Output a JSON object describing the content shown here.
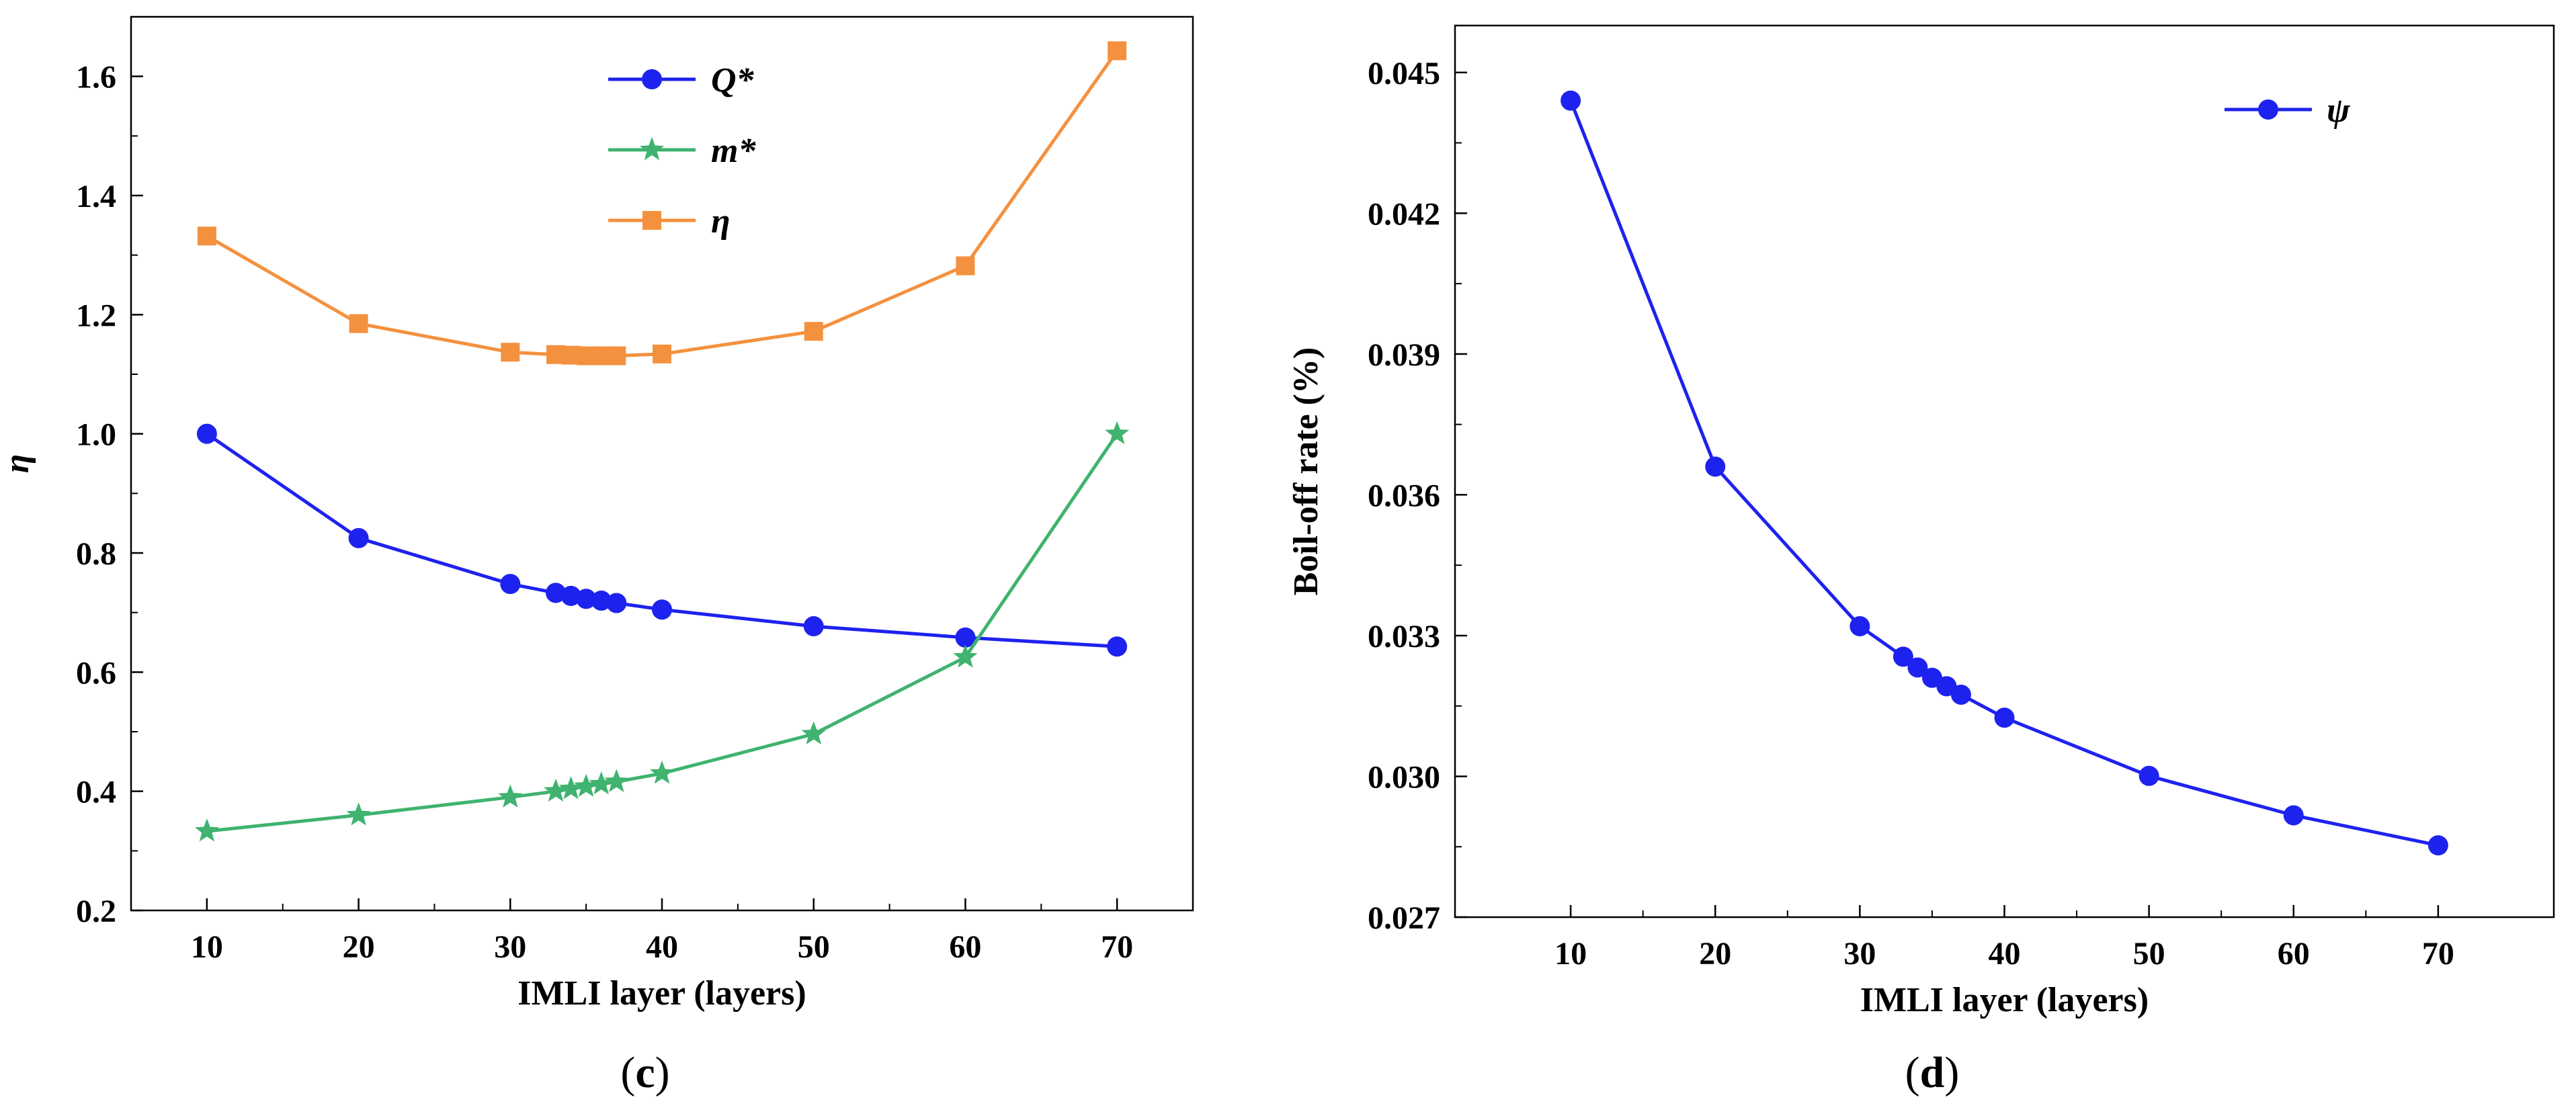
{
  "chart_data": [
    {
      "type": "line",
      "panel_label": "c",
      "xlabel": "IMLI layer (layers)",
      "ylabel": "η",
      "xlim": [
        5,
        75
      ],
      "ylim": [
        0.2,
        1.7
      ],
      "xticks": [
        10,
        20,
        30,
        40,
        50,
        60,
        70
      ],
      "yticks": [
        0.2,
        0.4,
        0.6,
        0.8,
        1.0,
        1.2,
        1.4,
        1.6
      ],
      "ytick_decimals": 1,
      "legend_position": "top-center",
      "series": [
        {
          "name": "Q*",
          "color": "#1e22ee",
          "marker": "circle",
          "x": [
            10,
            20,
            30,
            33,
            34,
            35,
            36,
            37,
            40,
            50,
            60,
            70
          ],
          "values": [
            1.0,
            0.825,
            0.748,
            0.733,
            0.728,
            0.723,
            0.72,
            0.716,
            0.705,
            0.677,
            0.658,
            0.643
          ]
        },
        {
          "name": "m*",
          "color": "#3fb36f",
          "marker": "star",
          "x": [
            10,
            20,
            30,
            33,
            34,
            35,
            36,
            37,
            40,
            50,
            60,
            70
          ],
          "values": [
            0.333,
            0.36,
            0.39,
            0.4,
            0.404,
            0.408,
            0.412,
            0.416,
            0.43,
            0.496,
            0.625,
            1.0
          ]
        },
        {
          "name": "η",
          "color": "#f4913f",
          "marker": "square",
          "x": [
            10,
            20,
            30,
            33,
            34,
            35,
            36,
            37,
            40,
            50,
            60,
            70
          ],
          "values": [
            1.332,
            1.185,
            1.137,
            1.133,
            1.132,
            1.131,
            1.131,
            1.131,
            1.134,
            1.172,
            1.282,
            1.643
          ]
        }
      ]
    },
    {
      "type": "line",
      "panel_label": "d",
      "xlabel": "IMLI layer (layers)",
      "ylabel": "Boil-off rate (%)",
      "xlim": [
        2,
        78
      ],
      "ylim": [
        0.027,
        0.046
      ],
      "xticks": [
        10,
        20,
        30,
        40,
        50,
        60,
        70
      ],
      "yticks": [
        0.027,
        0.03,
        0.033,
        0.036,
        0.039,
        0.042,
        0.045
      ],
      "ytick_decimals": 3,
      "legend_position": "top-right",
      "series": [
        {
          "name": "ψ",
          "color": "#1e22ee",
          "marker": "circle",
          "x": [
            10,
            20,
            30,
            33,
            34,
            35,
            36,
            37,
            40,
            50,
            60,
            70
          ],
          "values": [
            0.0444,
            0.0366,
            0.0332,
            0.03255,
            0.03232,
            0.0321,
            0.03192,
            0.03174,
            0.03125,
            0.03001,
            0.02917,
            0.02853
          ]
        }
      ]
    }
  ]
}
